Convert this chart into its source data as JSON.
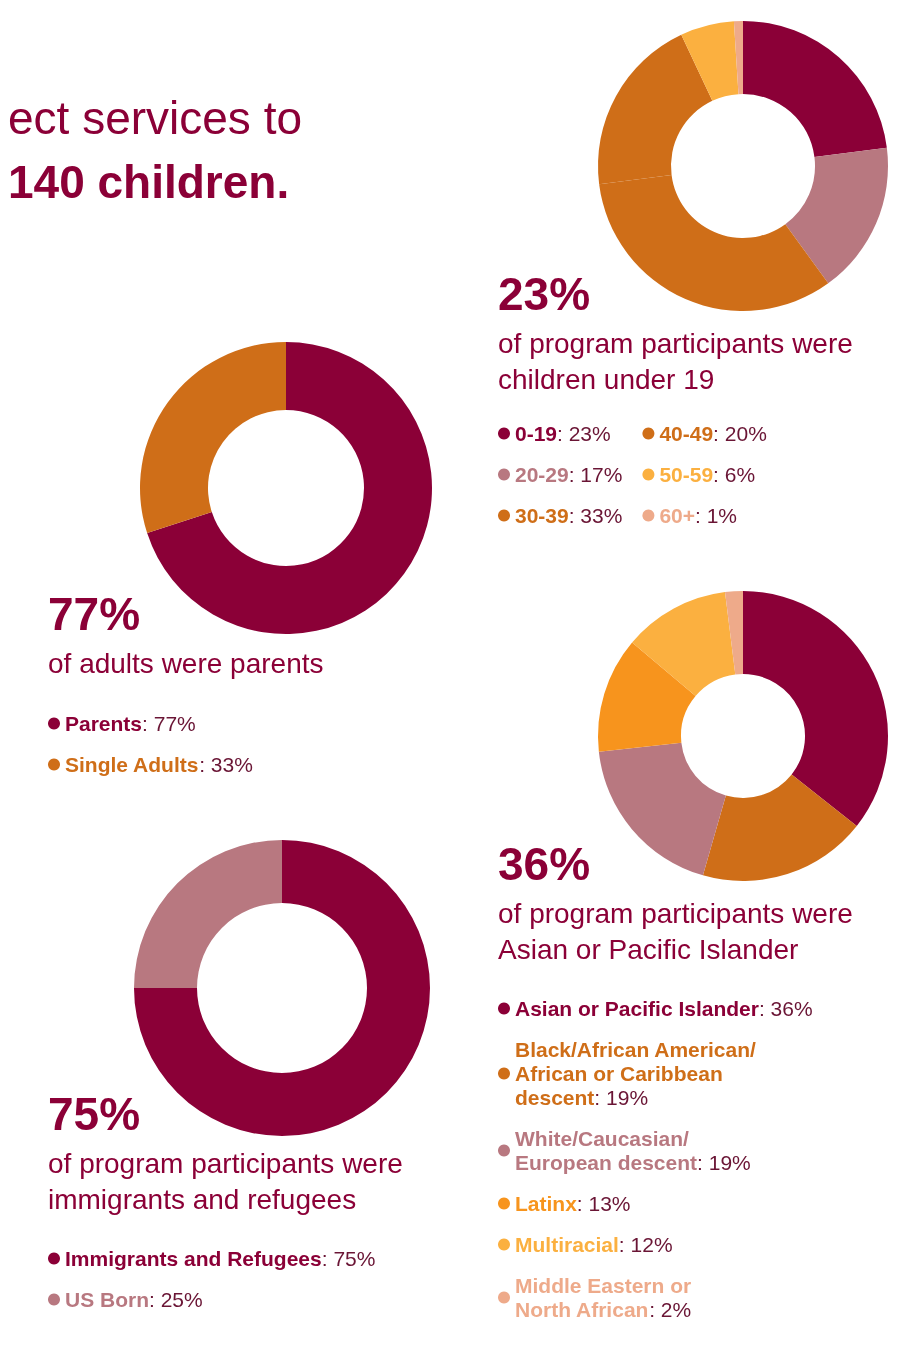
{
  "chart_data": [
    {
      "type": "donut",
      "title": "23%",
      "subtitle": "of program participants were children under 19",
      "annotations": [
        "ect services to",
        "140 children."
      ],
      "categories": [
        "0-19",
        "20-29",
        "30-39",
        "40-49",
        "50-59",
        "60+"
      ],
      "values": [
        23,
        17,
        33,
        20,
        6,
        1
      ],
      "colors": [
        "#8b0037",
        "#b87880",
        "#cf6e18",
        "#cf6e18",
        "#fbb040",
        "#eeaa8a"
      ],
      "value_labels": [
        ": 23%",
        ": 17%",
        ": 33%",
        ": 20%",
        ": 6%",
        ": 1%"
      ],
      "legend": "bottom"
    },
    {
      "type": "donut",
      "title": "77%",
      "subtitle": "of adults were parents",
      "categories": [
        "Parents",
        "Single Adults"
      ],
      "values": [
        77,
        33
      ],
      "colors": [
        "#8b0037",
        "#cf6e18"
      ],
      "value_labels": [
        ": 77%",
        ": 33%"
      ],
      "legend": "bottom"
    },
    {
      "type": "donut",
      "title": "36%",
      "subtitle": "of program participants were Asian or Pacific Islander",
      "categories": [
        "Asian or Pacific Islander",
        "Black/African American/\nAfrican or Caribbean\ndescent",
        "White/Caucasian/\nEuropean descent",
        "Latinx",
        "Multiracial",
        "Middle Eastern or\nNorth African"
      ],
      "values": [
        36,
        19,
        19,
        13,
        12,
        2
      ],
      "colors": [
        "#8b0037",
        "#cf6e18",
        "#b87880",
        "#f7941d",
        "#fbb040",
        "#eeaa8a"
      ],
      "value_labels": [
        ": 36%",
        ": 19%",
        ": 19%",
        ": 13%",
        ": 12%",
        ": 2%"
      ],
      "legend": "bottom"
    },
    {
      "type": "donut",
      "title": "75%",
      "subtitle": "of program participants were immigrants and refugees",
      "categories": [
        "Immigrants and Refugees",
        "US Born"
      ],
      "values": [
        75,
        25
      ],
      "colors": [
        "#8b0037",
        "#b87880"
      ],
      "value_labels": [
        ": 75%",
        ": 25%"
      ],
      "legend": "bottom"
    }
  ]
}
